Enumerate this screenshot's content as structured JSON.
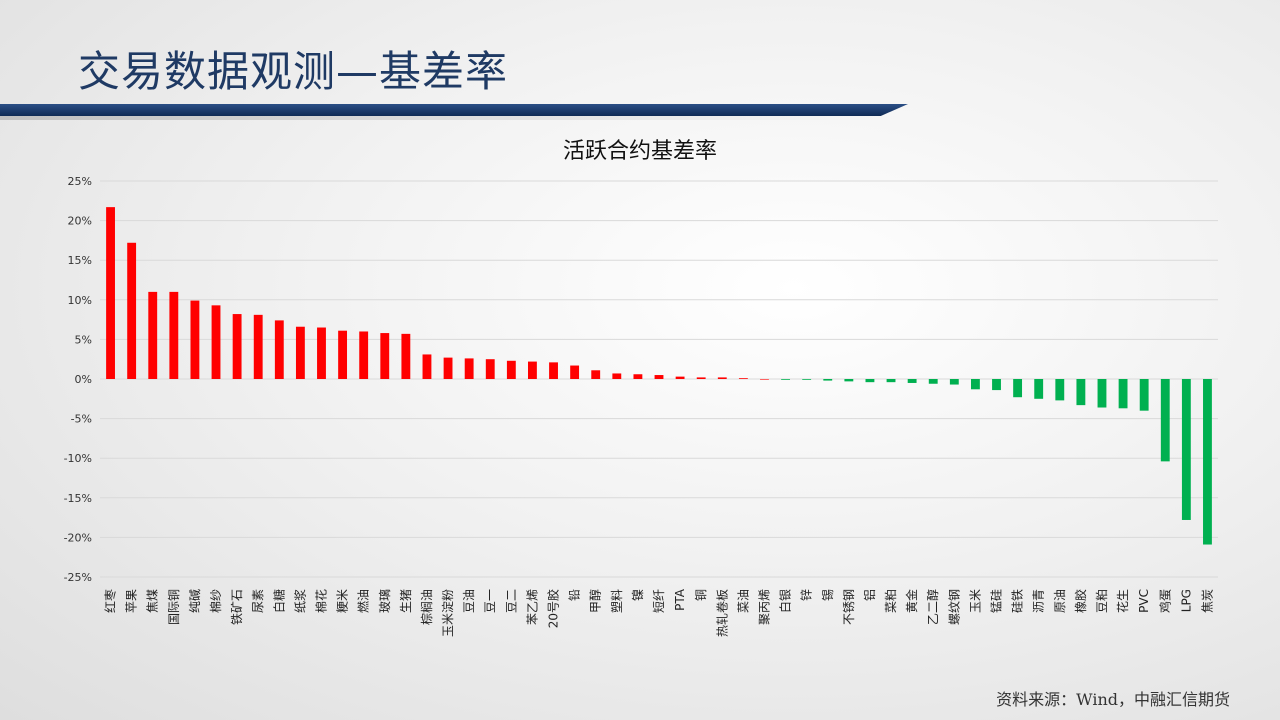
{
  "slide": {
    "title": "交易数据观测—基差率",
    "source": "资料来源：Wind，中融汇信期货"
  },
  "colors": {
    "positive": "#ff0000",
    "negative": "#00b050",
    "title": "#1f3a64",
    "grid": "#d9d9d9"
  },
  "chart_data": {
    "type": "bar",
    "title": "活跃合约基差率",
    "xlabel": "",
    "ylabel": "",
    "ylim": [
      -0.25,
      0.25
    ],
    "yticks": [
      0.25,
      0.2,
      0.15,
      0.1,
      0.05,
      0,
      -0.05,
      -0.1,
      -0.15,
      -0.2,
      -0.25
    ],
    "ytick_labels": [
      "25%",
      "20%",
      "15%",
      "10%",
      "5%",
      "0%",
      "-5%",
      "-10%",
      "-15%",
      "-20%",
      "-25%"
    ],
    "grid": true,
    "legend": "none",
    "categories": [
      "红枣",
      "苹果",
      "焦煤",
      "国际铜",
      "纯碱",
      "棉纱",
      "铁矿石",
      "尿素",
      "白糖",
      "纸浆",
      "棉花",
      "粳米",
      "燃油",
      "玻璃",
      "生猪",
      "棕榈油",
      "玉米淀粉",
      "豆油",
      "豆一",
      "豆二",
      "苯乙烯",
      "20号胶",
      "铅",
      "甲醇",
      "塑料",
      "镍",
      "短纤",
      "PTA",
      "铜",
      "热轧卷板",
      "菜油",
      "聚丙烯",
      "白银",
      "锌",
      "锡",
      "不锈钢",
      "铝",
      "菜粕",
      "黄金",
      "乙二醇",
      "螺纹钢",
      "玉米",
      "锰硅",
      "硅铁",
      "沥青",
      "原油",
      "橡胶",
      "豆粕",
      "花生",
      "PVC",
      "鸡蛋",
      "LPG",
      "焦炭"
    ],
    "values": [
      0.217,
      0.172,
      0.11,
      0.11,
      0.099,
      0.093,
      0.082,
      0.081,
      0.074,
      0.066,
      0.065,
      0.061,
      0.06,
      0.058,
      0.057,
      0.031,
      0.027,
      0.026,
      0.025,
      0.023,
      0.022,
      0.021,
      0.017,
      0.011,
      0.007,
      0.006,
      0.005,
      0.003,
      0.002,
      0.002,
      0.001,
      0.0,
      -0.001,
      -0.001,
      -0.002,
      -0.003,
      -0.004,
      -0.004,
      -0.005,
      -0.006,
      -0.007,
      -0.013,
      -0.014,
      -0.023,
      -0.025,
      -0.027,
      -0.033,
      -0.036,
      -0.037,
      -0.04,
      -0.104,
      -0.178,
      -0.209
    ]
  }
}
